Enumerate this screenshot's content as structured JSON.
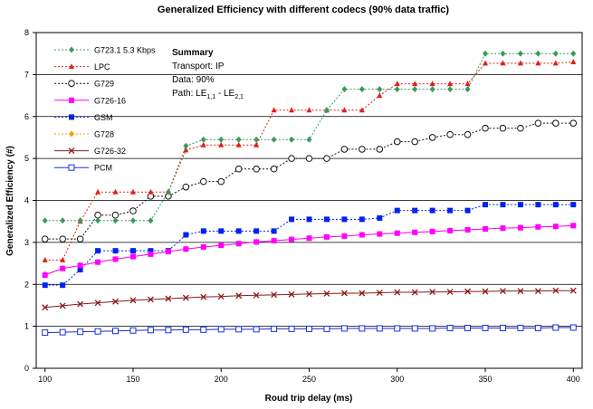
{
  "chart_data": {
    "type": "line",
    "title": "Generalized Efficiency with different codecs (90% data traffic)",
    "xlabel": "Roud trip delay (ms)",
    "ylabel": "Generalized Efficiency (#)",
    "xlim": [
      95,
      405
    ],
    "ylim": [
      0,
      8
    ],
    "xticks": [
      100,
      150,
      200,
      250,
      300,
      350,
      400
    ],
    "yticks": [
      0,
      1,
      2,
      3,
      4,
      5,
      6,
      7,
      8
    ],
    "grid": "horizontal",
    "legend_position": "top-left",
    "x": [
      100,
      110,
      120,
      130,
      140,
      150,
      160,
      170,
      180,
      190,
      200,
      210,
      220,
      230,
      240,
      250,
      260,
      270,
      280,
      290,
      300,
      310,
      320,
      330,
      340,
      350,
      360,
      370,
      380,
      390,
      400
    ],
    "annotation": {
      "heading": "Summary",
      "line1": "Transport: IP",
      "line2": "Data: 90%",
      "line3_prefix": "Path: LE",
      "line3_sub1": "1,1",
      "line3_mid": " - LE",
      "line3_sub2": "2,1"
    },
    "series": [
      {
        "name": "G723.1 5.3 Kbps",
        "color": "#3a9a5c",
        "marker": "diamond",
        "dash": "2,2",
        "values": [
          3.52,
          3.52,
          3.52,
          3.52,
          3.52,
          3.52,
          3.52,
          4.2,
          5.3,
          5.45,
          5.45,
          5.45,
          5.45,
          5.45,
          5.45,
          5.45,
          6.15,
          6.65,
          6.65,
          6.65,
          6.65,
          6.65,
          6.65,
          6.65,
          6.65,
          7.5,
          7.5,
          7.5,
          7.5,
          7.5,
          7.5
        ]
      },
      {
        "name": "LPC",
        "color": "#e0201a",
        "marker": "triangle",
        "dash": "2,2",
        "values": [
          2.58,
          2.58,
          3.5,
          4.2,
          4.2,
          4.2,
          4.2,
          4.2,
          5.2,
          5.32,
          5.32,
          5.32,
          5.32,
          6.15,
          6.15,
          6.15,
          6.15,
          6.15,
          6.15,
          6.5,
          6.78,
          6.78,
          6.78,
          6.78,
          6.78,
          7.27,
          7.27,
          7.27,
          7.27,
          7.27,
          7.3
        ]
      },
      {
        "name": "G729",
        "color": "#111111",
        "marker": "circle",
        "dash": "2,2",
        "values": [
          3.08,
          3.08,
          3.08,
          3.65,
          3.65,
          3.75,
          4.1,
          4.1,
          4.32,
          4.45,
          4.45,
          4.75,
          4.75,
          4.75,
          5.0,
          5.0,
          5.0,
          5.22,
          5.22,
          5.22,
          5.4,
          5.4,
          5.5,
          5.57,
          5.57,
          5.72,
          5.72,
          5.72,
          5.84,
          5.84,
          5.84
        ]
      },
      {
        "name": "G726-16",
        "color": "#ff00ff",
        "marker": "square",
        "dash": "",
        "values": [
          2.22,
          2.38,
          2.45,
          2.53,
          2.6,
          2.66,
          2.72,
          2.78,
          2.84,
          2.89,
          2.93,
          2.97,
          3.01,
          3.04,
          3.07,
          3.1,
          3.13,
          3.15,
          3.18,
          3.2,
          3.22,
          3.24,
          3.26,
          3.28,
          3.3,
          3.32,
          3.34,
          3.35,
          3.37,
          3.38,
          3.4
        ]
      },
      {
        "name": "GSM",
        "color": "#0022ee",
        "marker": "square",
        "dash": "2,2",
        "values": [
          1.98,
          1.98,
          2.35,
          2.8,
          2.8,
          2.8,
          2.8,
          2.8,
          3.18,
          3.27,
          3.27,
          3.27,
          3.27,
          3.27,
          3.55,
          3.55,
          3.55,
          3.55,
          3.55,
          3.58,
          3.76,
          3.76,
          3.76,
          3.76,
          3.76,
          3.9,
          3.9,
          3.9,
          3.9,
          3.9,
          3.9
        ]
      },
      {
        "name": "G728",
        "color": "#f5a000",
        "marker": "diamond",
        "dash": "2,2",
        "values": [
          2.25,
          2.38,
          2.45,
          2.53,
          2.6,
          2.66,
          2.72,
          2.78,
          2.84,
          2.89,
          2.93,
          2.97,
          3.01,
          3.04,
          3.07,
          3.1,
          3.13,
          3.15,
          3.18,
          3.2,
          3.22,
          3.24,
          3.26,
          3.28,
          3.3,
          3.32,
          3.34,
          3.35,
          3.37,
          3.38,
          3.4
        ]
      },
      {
        "name": "G726-32",
        "color": "#8b1a1a",
        "marker": "x",
        "dash": "",
        "values": [
          1.45,
          1.49,
          1.53,
          1.56,
          1.59,
          1.62,
          1.64,
          1.66,
          1.68,
          1.7,
          1.71,
          1.73,
          1.74,
          1.75,
          1.76,
          1.77,
          1.78,
          1.79,
          1.79,
          1.8,
          1.81,
          1.81,
          1.82,
          1.82,
          1.83,
          1.83,
          1.84,
          1.84,
          1.84,
          1.85,
          1.85
        ]
      },
      {
        "name": "PCM",
        "color": "#1a2ee0",
        "marker": "square-open",
        "dash": "",
        "values": [
          0.85,
          0.86,
          0.87,
          0.88,
          0.89,
          0.9,
          0.91,
          0.91,
          0.92,
          0.92,
          0.93,
          0.93,
          0.93,
          0.94,
          0.94,
          0.94,
          0.94,
          0.95,
          0.95,
          0.95,
          0.95,
          0.95,
          0.95,
          0.96,
          0.96,
          0.96,
          0.96,
          0.96,
          0.96,
          0.97,
          0.97
        ]
      }
    ]
  }
}
